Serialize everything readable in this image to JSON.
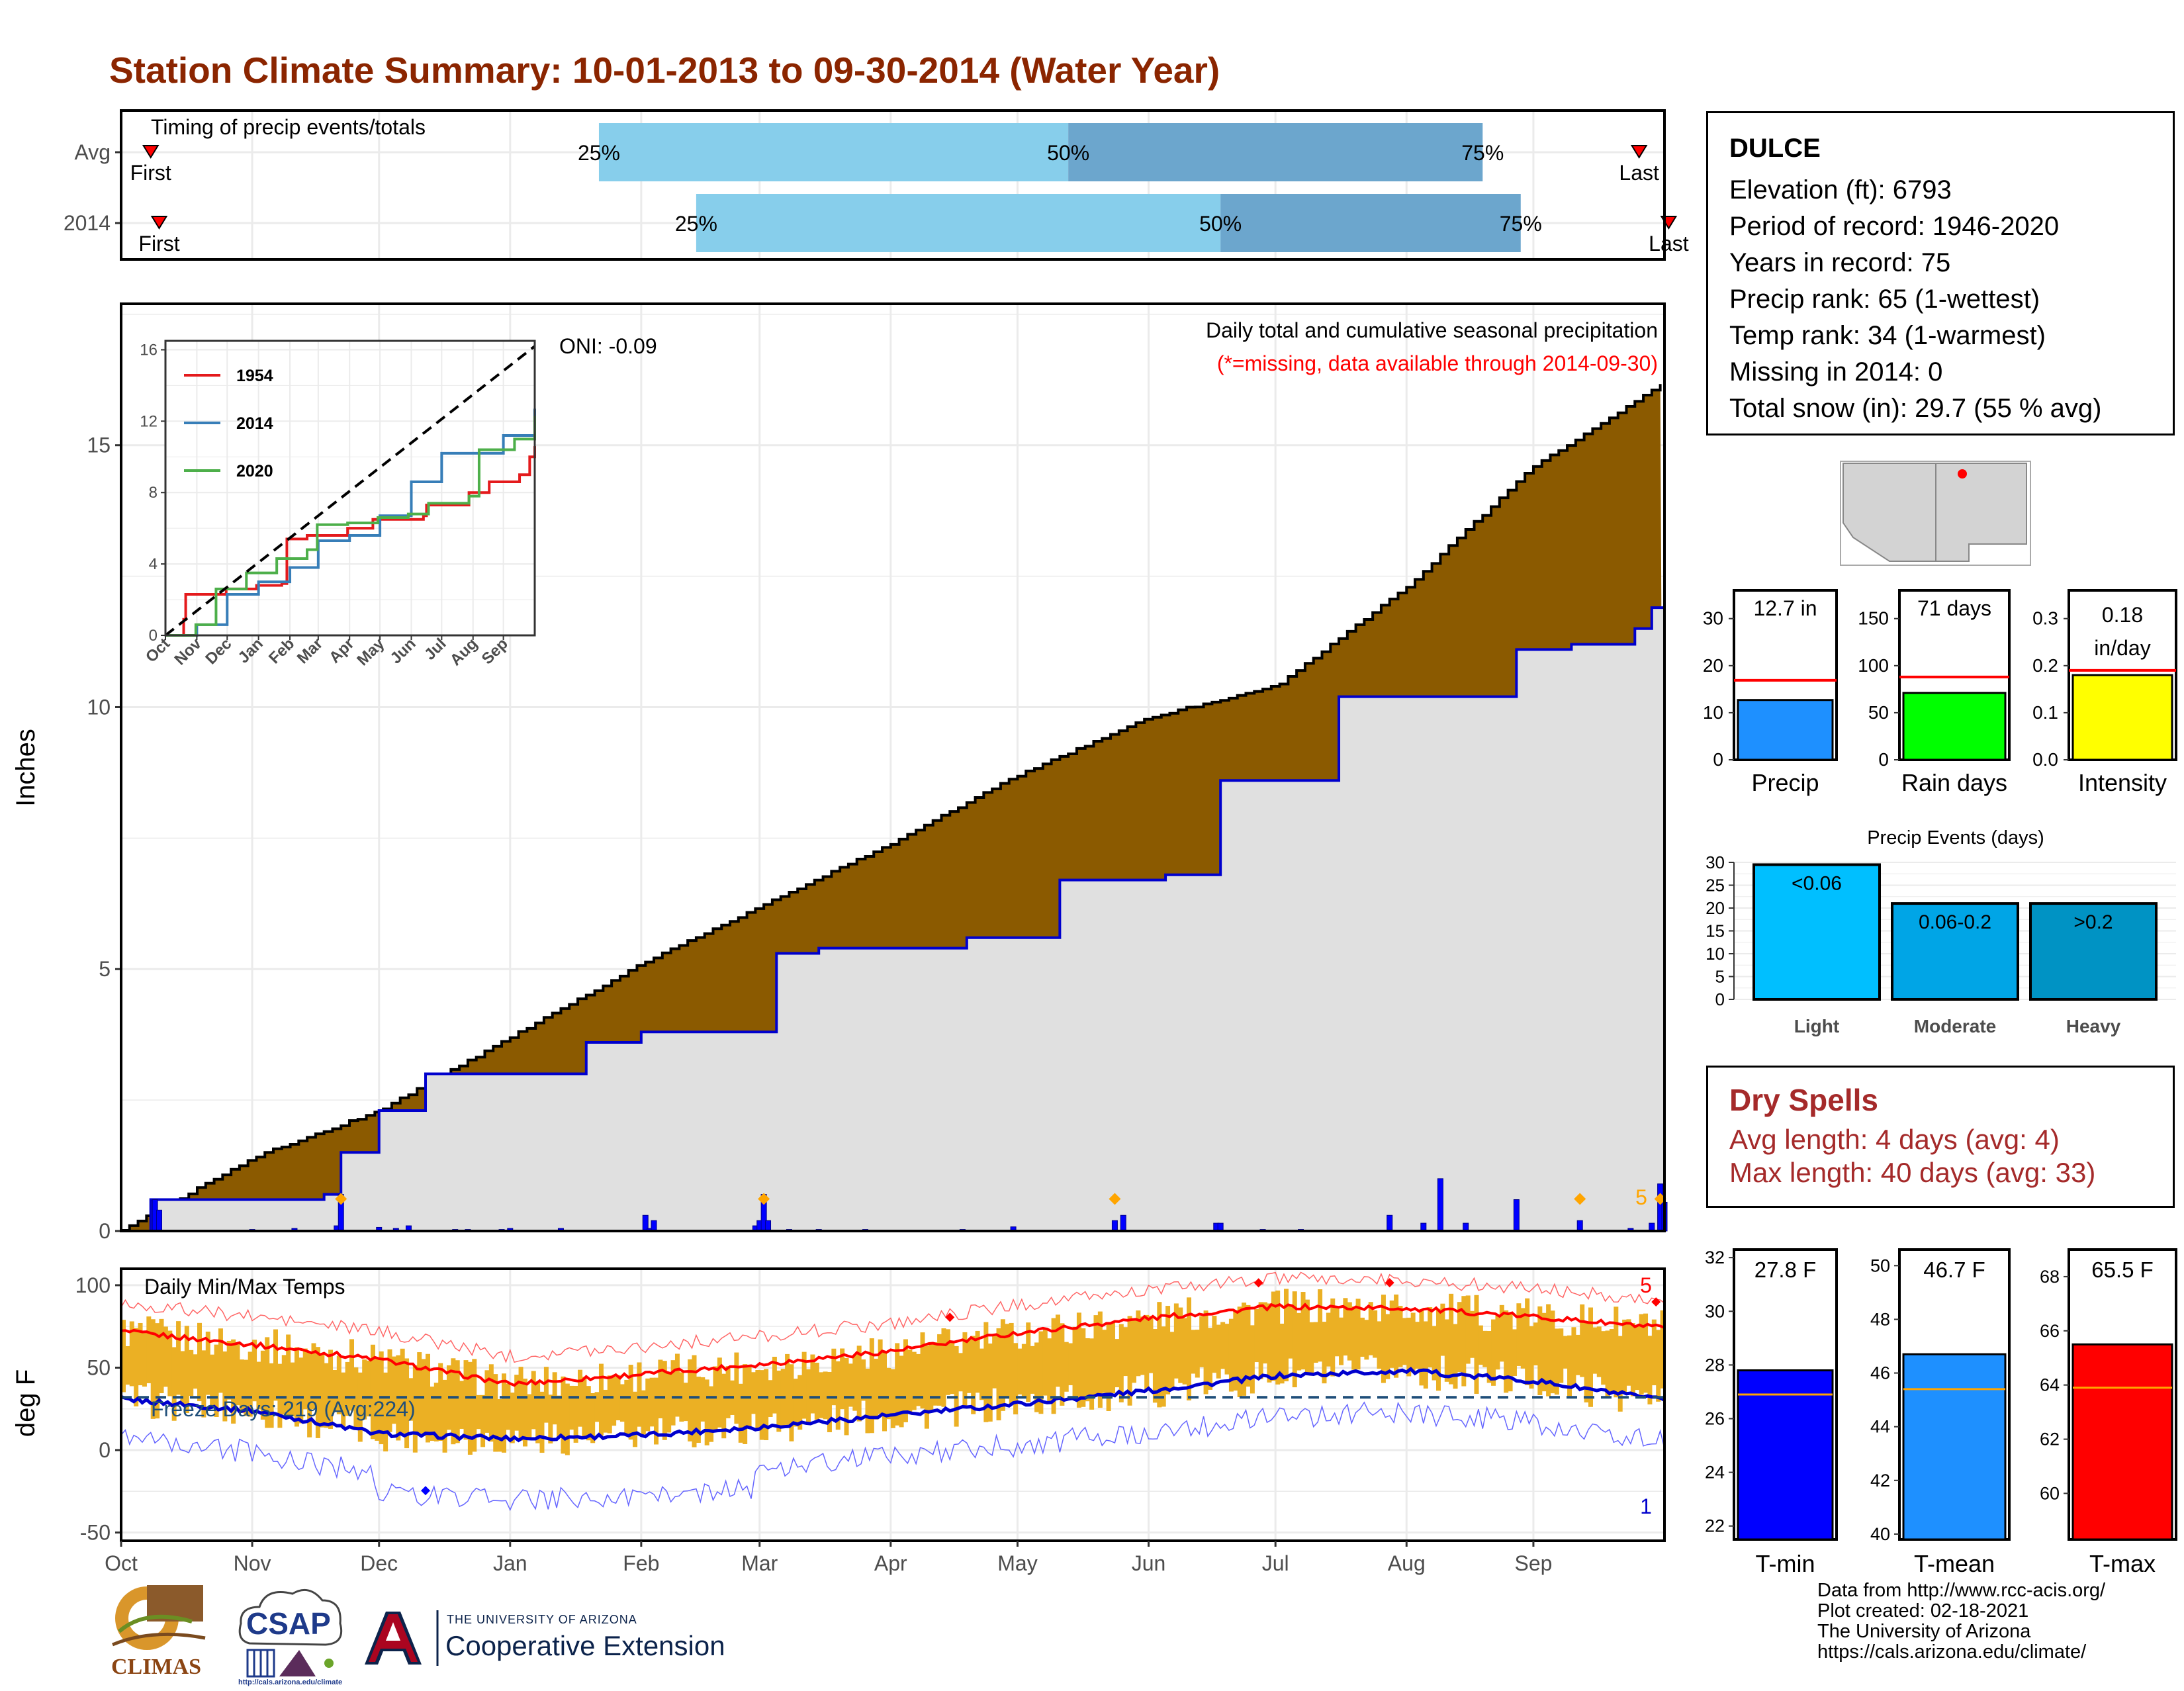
{
  "title": "Station Climate Summary: 10-01-2013 to 09-30-2014 (Water Year)",
  "colors": {
    "title": "#8B2500",
    "cum_fill": "#8B5A00",
    "season_fill": "#E0E0E0",
    "line_blue": "#0000CD",
    "temp_bar": "#EBB024",
    "tmax_line": "#FF0000",
    "tmin_line": "#0000CD",
    "timing_light": "#87CEEB",
    "timing_dark": "#6CA6CD",
    "marker_red": "#FF0000"
  },
  "timing": {
    "label": "Timing of precip events/totals",
    "rows": [
      {
        "name": "Avg",
        "first": "First",
        "last": "Last",
        "p25": "25%",
        "p50": "50%",
        "p75": "75%",
        "first_day": 7,
        "p25_day": 113,
        "p50_day": 224,
        "p75_day": 322,
        "last_day": 359
      },
      {
        "name": "2014",
        "first": "First",
        "last": "Last",
        "p25": "25%",
        "p50": "50%",
        "p75": "75%",
        "first_day": 9,
        "p25_day": 136,
        "p50_day": 260,
        "p75_day": 331,
        "last_day": 366
      }
    ]
  },
  "station": {
    "name": "DULCE",
    "lines": [
      "Elevation (ft): 6793",
      "Period of record: 1946-2020",
      "Years in record: 75",
      "Precip rank: 65 (1-wettest)",
      "Temp rank: 34 (1-warmest)",
      "Missing in 2014: 0",
      "Total snow (in): 29.7 (55 % avg)"
    ]
  },
  "precip_panel": {
    "ylabel": "Inches",
    "title": "Daily total and cumulative seasonal precipitation",
    "subtitle": "(*=missing, data available through 2014-09-30)",
    "oni": "ONI: -0.09",
    "corner_label": "5",
    "yticks": [
      0,
      5,
      10,
      15
    ],
    "ylim": [
      0,
      17.7
    ]
  },
  "inset": {
    "yticks": [
      "0",
      "4",
      "8",
      "12",
      "16"
    ],
    "xticks": [
      "Oct",
      "Nov",
      "Dec",
      "Jan",
      "Feb",
      "Mar",
      "Apr",
      "May",
      "Jun",
      "Jul",
      "Aug",
      "Sep"
    ],
    "legend": [
      "1954",
      "2014",
      "2020"
    ],
    "legend_colors": [
      "#E41A1C",
      "#377EB8",
      "#4DAF4A"
    ]
  },
  "temp_panel": {
    "ylabel": "deg F",
    "title": "Daily Min/Max Temps",
    "freeze": "Freeze Days: 219 (Avg:224)",
    "label_top": "5",
    "label_bottom": "1",
    "yticks": [
      "100",
      "50",
      "0",
      "-50"
    ]
  },
  "months": [
    "Oct",
    "Nov",
    "Dec",
    "Jan",
    "Feb",
    "Mar",
    "Apr",
    "May",
    "Jun",
    "Jul",
    "Aug",
    "Sep"
  ],
  "summary_bars": [
    {
      "label": "Precip",
      "value_text": "12.7 in",
      "value": 12.7,
      "avg": 16.9,
      "ymax": 36,
      "yticks": [
        "0",
        "10",
        "20",
        "30"
      ],
      "tickvals": [
        0,
        10,
        20,
        30
      ],
      "color": "#1E90FF"
    },
    {
      "label": "Rain days",
      "value_text": "71 days",
      "value": 71,
      "avg": 88,
      "ymax": 180,
      "yticks": [
        "0",
        "50",
        "100",
        "150"
      ],
      "tickvals": [
        0,
        50,
        100,
        150
      ],
      "color": "#00FF00"
    },
    {
      "label": "Intensity",
      "value_text": "0.18 in/day",
      "value_line1": "0.18",
      "value_line2": "in/day",
      "value": 0.18,
      "avg": 0.19,
      "ymax": 0.36,
      "yticks": [
        "0.0",
        "0.1",
        "0.2",
        "0.3"
      ],
      "tickvals": [
        0,
        0.1,
        0.2,
        0.3
      ],
      "color": "#FFFF00"
    }
  ],
  "events": {
    "title": "Precip Events (days)",
    "yticks": [
      "0",
      "5",
      "10",
      "15",
      "20",
      "25",
      "30"
    ],
    "categories": [
      "Light",
      "Moderate",
      "Heavy"
    ],
    "bar_labels": [
      "<0.06",
      "0.06-0.2",
      ">0.2"
    ],
    "values": [
      29.5,
      21,
      21
    ],
    "colors": [
      "#00BFFF",
      "#00A5E6",
      "#0093C4"
    ]
  },
  "dry_spells": {
    "title": "Dry Spells",
    "avg_length": "Avg length: 4 days (avg: 4)",
    "max_length": "Max length: 40 days (avg: 33)"
  },
  "temp_bars": [
    {
      "label": "T-min",
      "value_text": "27.8 F",
      "value": 27.8,
      "avg": 26.9,
      "ymin": 21.5,
      "ymax": 32.3,
      "yticks": [
        "22",
        "24",
        "26",
        "28",
        "30",
        "32"
      ],
      "tickvals": [
        22,
        24,
        26,
        28,
        30,
        32
      ],
      "color": "#0000FF"
    },
    {
      "label": "T-mean",
      "value_text": "46.7 F",
      "value": 46.7,
      "avg": 45.4,
      "ymin": 39.8,
      "ymax": 50.6,
      "yticks": [
        "40",
        "42",
        "44",
        "46",
        "48",
        "50"
      ],
      "tickvals": [
        40,
        42,
        44,
        46,
        48,
        50
      ],
      "color": "#1E90FF"
    },
    {
      "label": "T-max",
      "value_text": "65.5 F",
      "value": 65.5,
      "avg": 63.9,
      "ymin": 58.3,
      "ymax": 69.0,
      "yticks": [
        "60",
        "62",
        "64",
        "66",
        "68"
      ],
      "tickvals": [
        60,
        62,
        64,
        66,
        68
      ],
      "color": "#FF0000"
    }
  ],
  "logos": {
    "climas": "CLIMAS",
    "csap": "CSAP",
    "csap_url": "http://cals.arizona.edu/climate",
    "ua_small": "THE UNIVERSITY OF ARIZONA",
    "ua_big": "Cooperative Extension"
  },
  "credits": [
    "Data from http://www.rcc-acis.org/",
    "Plot created: 02-18-2021",
    "The University of Arizona",
    "https://cals.arizona.edu/climate/"
  ],
  "chart_data": [
    {
      "type": "area",
      "title": "Daily total and cumulative seasonal precipitation",
      "ylabel": "Inches",
      "x_unit": "day of water year",
      "series": [
        {
          "name": "",
          "x": [
            0,
            31,
            61,
            92,
            123,
            151,
            182,
            212,
            243,
            273,
            304,
            334,
            365
          ],
          "values": [
            0,
            1.4,
            2.3,
            3.7,
            5.1,
            6.2,
            7.4,
            8.7,
            9.8,
            10.4,
            12.3,
            14.6,
            16.2
          ]
        },
        {
          "name": "",
          "x": [
            0,
            7,
            31,
            48,
            52,
            61,
            66,
            72,
            92,
            105,
            110,
            123,
            140,
            151,
            155,
            165,
            175,
            200,
            212,
            222,
            240,
            247,
            260,
            275,
            288,
            295,
            330,
            343,
            358,
            362,
            365
          ],
          "values": [
            0,
            0.6,
            0.6,
            0.7,
            1.5,
            2.3,
            2.3,
            3.0,
            3.0,
            3.0,
            3.6,
            3.8,
            3.8,
            3.8,
            5.3,
            5.4,
            5.4,
            5.6,
            5.6,
            6.7,
            6.7,
            6.8,
            8.6,
            8.6,
            10.2,
            10.2,
            11.1,
            11.2,
            11.5,
            11.9,
            12.7
          ]
        }
      ],
      "daily_precip_days": [
        8,
        9,
        31,
        41,
        51,
        52,
        61,
        65,
        68,
        79,
        82,
        90,
        92,
        104,
        124,
        125,
        126,
        150,
        151,
        152,
        153,
        158,
        165,
        176,
        199,
        211,
        235,
        237,
        259,
        260,
        270,
        279,
        300,
        308,
        312,
        318,
        330,
        345,
        357,
        362,
        364,
        365
      ],
      "daily_precip_values": [
        0.6,
        0.4,
        0.03,
        0.05,
        0.1,
        0.7,
        0.07,
        0.05,
        0.1,
        0.03,
        0.03,
        0.03,
        0.05,
        0.05,
        0.3,
        0.05,
        0.2,
        0.1,
        0.2,
        0.7,
        0.2,
        0.03,
        0.03,
        0.03,
        0.03,
        0.08,
        0.2,
        0.3,
        0.15,
        0.15,
        0.03,
        0.03,
        0.3,
        0.15,
        1.0,
        0.15,
        0.6,
        0.2,
        0.05,
        0.15,
        0.9,
        0.55
      ]
    },
    {
      "type": "line",
      "title": "",
      "xticks": [
        "Oct",
        "Nov",
        "Dec",
        "Jan",
        "Feb",
        "Mar",
        "Apr",
        "May",
        "Jun",
        "Jul",
        "Aug",
        "Sep"
      ],
      "ylim": [
        0,
        16
      ],
      "series": [
        {
          "name": "1954",
          "x": [
            0,
            18,
            20,
            60,
            90,
            115,
            120,
            140,
            180,
            205,
            255,
            258,
            300,
            320,
            350,
            360,
            365
          ],
          "values": [
            0,
            0.9,
            2.3,
            2.6,
            2.8,
            2.9,
            5.4,
            5.6,
            6.0,
            6.5,
            6.7,
            7.3,
            8.0,
            8.6,
            9.0,
            10.0,
            10.6
          ]
        },
        {
          "name": "2014",
          "x": [
            0,
            31,
            61,
            92,
            123,
            151,
            182,
            212,
            243,
            273,
            304,
            334,
            365
          ],
          "values": [
            0,
            0.6,
            2.3,
            3.0,
            3.8,
            5.3,
            5.6,
            6.7,
            8.6,
            10.2,
            10.2,
            11.2,
            12.7
          ]
        },
        {
          "name": "2020",
          "x": [
            0,
            30,
            50,
            80,
            110,
            140,
            150,
            180,
            210,
            240,
            255,
            260,
            300,
            310,
            345,
            365
          ],
          "values": [
            0,
            0.6,
            2.6,
            3.5,
            4.3,
            4.8,
            6.2,
            6.3,
            6.6,
            6.8,
            6.8,
            7.4,
            7.8,
            10.4,
            11.0,
            12.3
          ]
        },
        {
          "name": "",
          "x": [
            0,
            365
          ],
          "values": [
            0,
            16.2
          ]
        }
      ]
    },
    {
      "type": "line",
      "title": "Daily Min/Max Temps",
      "ylabel": "deg F",
      "ylim": [
        -55,
        110
      ],
      "x_unit": "day of water year",
      "series": [
        {
          "name": "",
          "x": [
            0,
            31,
            61,
            92,
            123,
            151,
            182,
            212,
            243,
            273,
            304,
            334,
            365
          ],
          "values": [
            72,
            64,
            55,
            40,
            46,
            52,
            60,
            71,
            80,
            87,
            86,
            81,
            74
          ]
        },
        {
          "name": "",
          "x": [
            0,
            31,
            61,
            92,
            123,
            151,
            182,
            212,
            243,
            273,
            304,
            334,
            365
          ],
          "values": [
            31,
            24,
            10,
            7,
            9,
            14,
            21,
            28,
            36,
            45,
            48,
            42,
            30
          ]
        },
        {
          "name": "",
          "x": [
            0,
            365
          ],
          "values": [
            32,
            32
          ]
        }
      ],
      "freeze_days": 219
    },
    {
      "type": "bar",
      "title": "",
      "categories": [
        "Precip"
      ],
      "values": [
        12.7
      ],
      "ylim": [
        0,
        36
      ]
    },
    {
      "type": "bar",
      "title": "",
      "categories": [
        "Rain days"
      ],
      "values": [
        71
      ],
      "ylim": [
        0,
        180
      ]
    },
    {
      "type": "bar",
      "title": "",
      "categories": [
        "Intensity"
      ],
      "values": [
        0.18
      ],
      "ylim": [
        0,
        0.36
      ]
    },
    {
      "type": "bar",
      "title": "Precip Events (days)",
      "categories": [
        "Light",
        "Moderate",
        "Heavy"
      ],
      "values": [
        29.5,
        21,
        21
      ],
      "ylim": [
        0,
        30
      ]
    },
    {
      "type": "bar",
      "title": "",
      "categories": [
        "T-min"
      ],
      "values": [
        27.8
      ],
      "ylim": [
        21.5,
        32.3
      ]
    },
    {
      "type": "bar",
      "title": "",
      "categories": [
        "T-mean"
      ],
      "values": [
        46.7
      ],
      "ylim": [
        39.8,
        50.6
      ]
    },
    {
      "type": "bar",
      "title": "",
      "categories": [
        "T-max"
      ],
      "values": [
        65.5
      ],
      "ylim": [
        58.3,
        69.0
      ]
    }
  ]
}
